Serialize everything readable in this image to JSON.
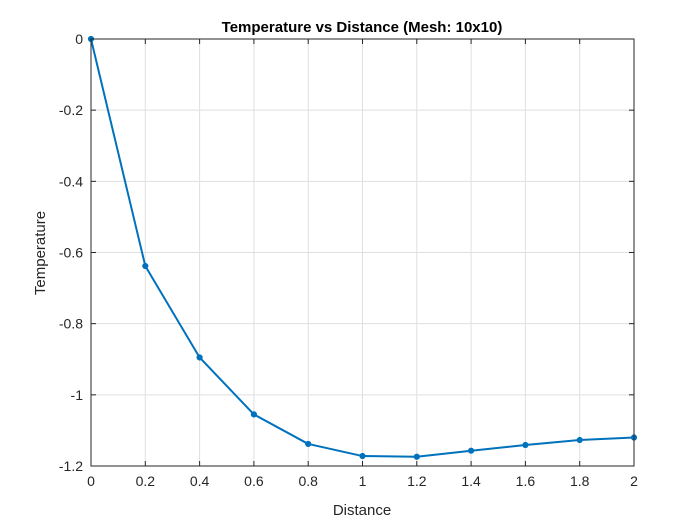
{
  "chart_data": {
    "type": "line",
    "title": "Temperature vs Distance (Mesh: 10x10)",
    "xlabel": "Distance",
    "ylabel": "Temperature",
    "xlim": [
      0,
      2
    ],
    "ylim": [
      -1.2,
      0
    ],
    "x_ticks": [
      0,
      0.2,
      0.4,
      0.6,
      0.8,
      1,
      1.2,
      1.4,
      1.6,
      1.8,
      2
    ],
    "y_ticks": [
      0,
      -0.2,
      -0.4,
      -0.6,
      -0.8,
      -1,
      -1.2
    ],
    "x_tick_labels": [
      "0",
      "0.2",
      "0.4",
      "0.6",
      "0.8",
      "1",
      "1.2",
      "1.4",
      "1.6",
      "1.8",
      "2"
    ],
    "y_tick_labels": [
      "0",
      "-0.2",
      "-0.4",
      "-0.6",
      "-0.8",
      "-1",
      "-1.2"
    ],
    "grid": true,
    "series": [
      {
        "color": "#0072BD",
        "marker": "dot",
        "x": [
          0,
          0.2,
          0.4,
          0.6,
          0.8,
          1.0,
          1.2,
          1.4,
          1.6,
          1.8,
          2.0
        ],
        "y": [
          0,
          -0.638,
          -0.895,
          -1.055,
          -1.138,
          -1.172,
          -1.174,
          -1.157,
          -1.141,
          -1.127,
          -1.12
        ]
      }
    ]
  }
}
